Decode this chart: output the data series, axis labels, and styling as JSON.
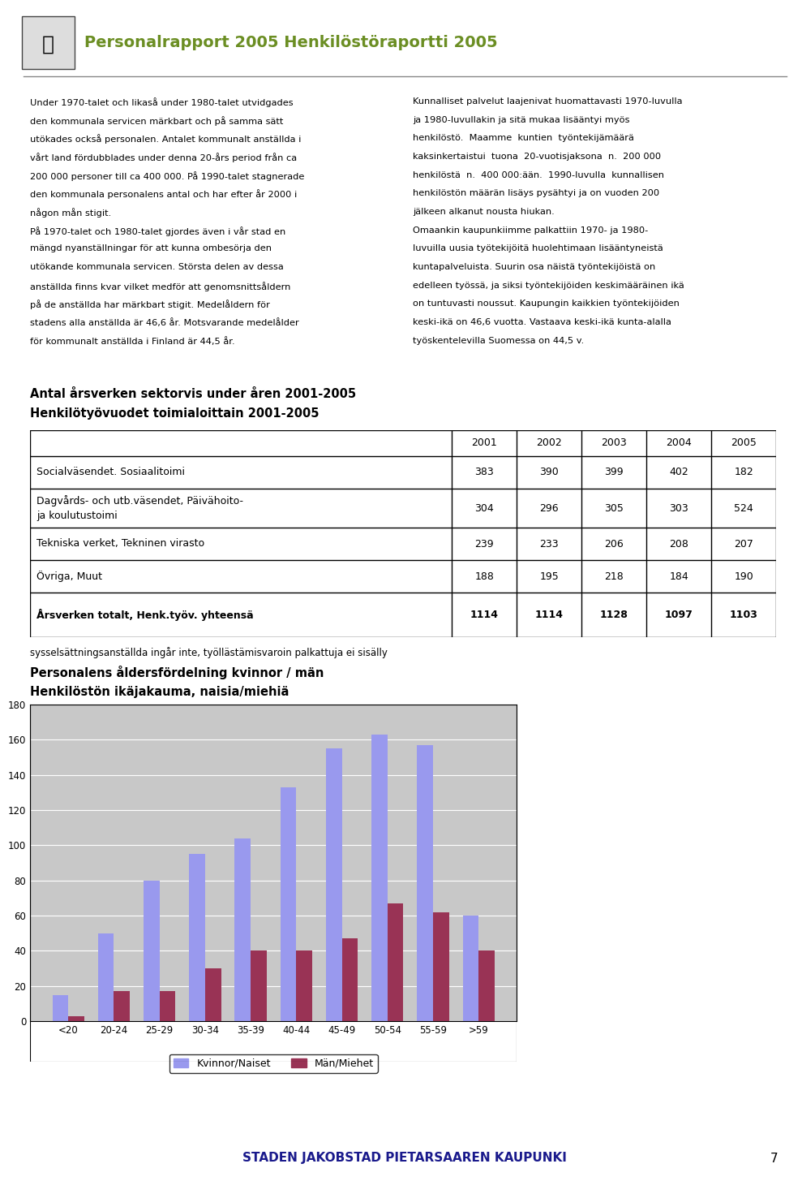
{
  "header_title": "Personalrapport 2005 Henkilöstöraportti 2005",
  "header_color": "#6b8e23",
  "body_text_left": [
    "Under 1970-talet och likaså under 1980-talet utvidgades",
    "den kommunala servicen märkbart och på samma sätt",
    "utökades också personalen. Antalet kommunalt anställda i",
    "vårt land fördubblades under denna 20-års period från ca",
    "200 000 personer till ca 400 000. På 1990-talet stagnerade",
    "den kommunala personalens antal och har efter år 2000 i",
    "någon mån stigit.",
    "På 1970-talet och 1980-talet gjordes även i vår stad en",
    "mängd nyanställningar för att kunna ombesörja den",
    "utökande kommunala servicen. Största delen av dessa",
    "anställda finns kvar vilket medför att genomsnittsåldern",
    "på de anställda har märkbart stigit. Medelåldern för",
    "stadens alla anställda är 46,6 år. Motsvarande medelålder",
    "för kommunalt anställda i Finland är 44,5 år."
  ],
  "body_text_right": [
    "Kunnalliset palvelut laajenivat huomattavasti 1970-luvulla",
    "ja 1980-luvullakin ja sitä mukaa lisääntyi myös",
    "henkilöstö.  Maamme  kuntien  työntekijämäärä",
    "kaksinkertaistui  tuona  20-vuotisjaksona  n.  200 000",
    "henkilöstä  n.  400 000:ään.  1990-luvulla  kunnallisen",
    "henkilöstön määrän lisäys pysähtyi ja on vuoden 200",
    "jälkeen alkanut nousta hiukan.",
    "Omaankin kaupunkiimme palkattiin 1970- ja 1980-",
    "luvuilla uusia työtekijöitä huolehtimaan lisääntyneistä",
    "kuntapalveluista. Suurin osa näistä työntekijöistä on",
    "edelleen työssä, ja siksi työntekijöiden keskimääräinen ikä",
    "on tuntuvasti noussut. Kaupungin kaikkien työntekijöiden",
    "keski-ikä on 46,6 vuotta. Vastaava keski-ikä kunta-alalla",
    "työskentelevilla Suomessa on 44,5 v."
  ],
  "section_title1": "Antal årsverken sektorvis under åren 2001-2005",
  "section_title2": "Henkilötyövuodet toimialoittain 2001-2005",
  "table_years": [
    "2001",
    "2002",
    "2003",
    "2004",
    "2005"
  ],
  "table_rows": [
    {
      "label": "Socialväsendet. Sosiaalitoimi",
      "values": [
        383,
        390,
        399,
        402,
        182
      ],
      "label2": null
    },
    {
      "label": "Dagvårds- och utb.väsendet, Päivähoito-",
      "values": [
        304,
        296,
        305,
        303,
        524
      ],
      "label2": "ja koulutustoimi"
    },
    {
      "label": "Tekniska verket, Tekninen virasto",
      "values": [
        239,
        233,
        206,
        208,
        207
      ],
      "label2": null
    },
    {
      "label": "Övriga, Muut",
      "values": [
        188,
        195,
        218,
        184,
        190
      ],
      "label2": null
    }
  ],
  "table_total_label": "Årsverken totalt, Henk.työv. yhteensä",
  "table_total_values": [
    1114,
    1114,
    1128,
    1097,
    1103
  ],
  "table_note": "sysselsättningsanställda ingår inte, työllästämisvaroin palkattuja ei sisälly",
  "chart_title1": "Personalens åldersfördelning kvinnor / män",
  "chart_title2": "Henkilöstön ikäjakauma, naisia/miehiä",
  "categories": [
    "<20",
    "20-24",
    "25-29",
    "30-34",
    "35-39",
    "40-44",
    "45-49",
    "50-54",
    "55-59",
    ">59"
  ],
  "kvinnor": [
    15,
    50,
    80,
    95,
    104,
    133,
    155,
    163,
    157,
    60
  ],
  "man": [
    3,
    17,
    17,
    30,
    40,
    40,
    47,
    67,
    62,
    40
  ],
  "bar_color_kvinnor": "#9999ee",
  "bar_color_man": "#993355",
  "chart_plot_bg": "#c8c8c8",
  "y_max": 180,
  "y_ticks": [
    0,
    20,
    40,
    60,
    80,
    100,
    120,
    140,
    160,
    180
  ],
  "footer_text": "STADEN JAKOBSTAD PIETARSAAREN KAUPUNKI",
  "footer_page": "7",
  "footer_color": "#1a1a8c"
}
